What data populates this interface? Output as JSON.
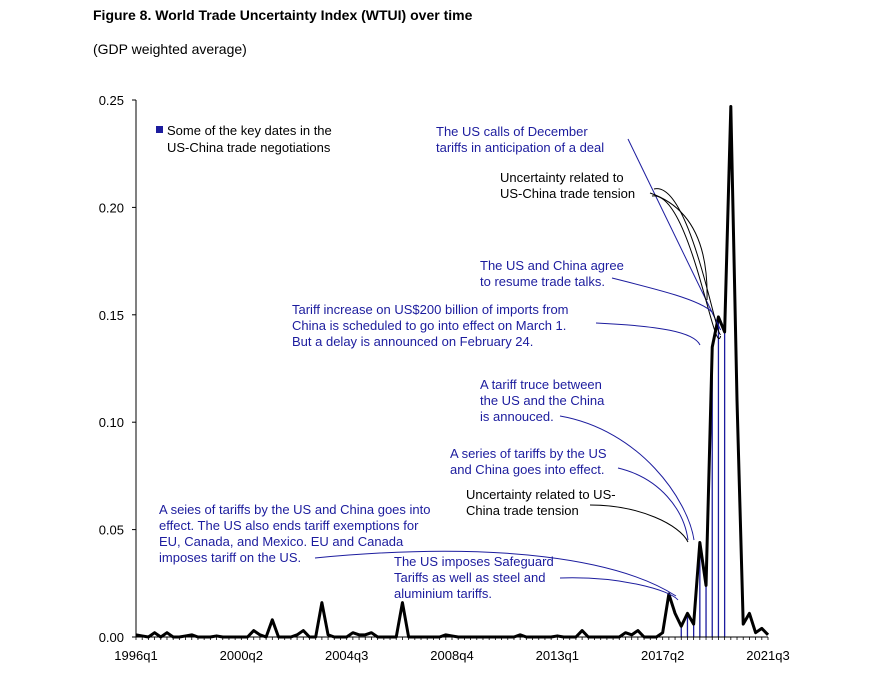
{
  "chart_data": {
    "type": "line",
    "title": "Figure 8. World Trade Uncertainty Index (WTUI) over time",
    "subtitle": "(GDP weighted average)",
    "xlabel": "",
    "ylabel": "",
    "ylim": [
      0,
      0.25
    ],
    "y_ticks": [
      "0.00",
      "0.05",
      "0.10",
      "0.15",
      "0.20",
      "0.25"
    ],
    "x_tick_labels": [
      "1996q1",
      "2000q2",
      "2004q3",
      "2008q4",
      "2013q1",
      "2017q2",
      "2021q3"
    ],
    "grid": false,
    "legend_label": "Some of the key dates in the US-China trade negotiations",
    "legend_lines": [
      "Some of the key dates in the",
      "US-China trade negotiations"
    ],
    "colors": {
      "series": "#000000",
      "key_dates": "#1c1c9e"
    },
    "series": [
      {
        "x": [
          "1996q1",
          "1996q2",
          "1996q3",
          "1996q4",
          "1997q1",
          "1997q2",
          "1997q3",
          "1997q4",
          "1998q1",
          "1998q2",
          "1998q3",
          "1998q4",
          "1999q1",
          "1999q2",
          "1999q3",
          "1999q4",
          "2000q1",
          "2000q2",
          "2000q3",
          "2000q4",
          "2001q1",
          "2001q2",
          "2001q3",
          "2001q4",
          "2002q1",
          "2002q2",
          "2002q3",
          "2002q4",
          "2003q1",
          "2003q2",
          "2003q3",
          "2003q4",
          "2004q1",
          "2004q2",
          "2004q3",
          "2004q4",
          "2005q1",
          "2005q2",
          "2005q3",
          "2005q4",
          "2006q1",
          "2006q2",
          "2006q3",
          "2006q4",
          "2007q1",
          "2007q2",
          "2007q3",
          "2007q4",
          "2008q1",
          "2008q2",
          "2008q3",
          "2008q4",
          "2009q1",
          "2009q2",
          "2009q3",
          "2009q4",
          "2010q1",
          "2010q2",
          "2010q3",
          "2010q4",
          "2011q1",
          "2011q2",
          "2011q3",
          "2011q4",
          "2012q1",
          "2012q2",
          "2012q3",
          "2012q4",
          "2013q1",
          "2013q2",
          "2013q3",
          "2013q4",
          "2014q1",
          "2014q2",
          "2014q3",
          "2014q4",
          "2015q1",
          "2015q2",
          "2015q3",
          "2015q4",
          "2016q1",
          "2016q2",
          "2016q3",
          "2016q4",
          "2017q1",
          "2017q2",
          "2017q3",
          "2017q4",
          "2018q1",
          "2018q2",
          "2018q3",
          "2018q4",
          "2019q1",
          "2019q2",
          "2019q3",
          "2019q4",
          "2020q1",
          "2020q2",
          "2020q3",
          "2020q4",
          "2021q1",
          "2021q2",
          "2021q3"
        ],
        "values": [
          0.001,
          0.0005,
          0.0,
          0.002,
          0.0,
          0.002,
          0.0,
          0.0,
          0.0005,
          0.001,
          0.0,
          0.0,
          0.0,
          0.0005,
          0.0,
          0.0,
          0.0,
          0.0,
          0.0,
          0.003,
          0.001,
          0.0,
          0.008,
          0.0,
          0.0,
          0.0,
          0.001,
          0.003,
          0.0,
          0.0,
          0.016,
          0.001,
          0.0,
          0.0,
          0.0,
          0.002,
          0.001,
          0.001,
          0.002,
          0.0,
          0.0,
          0.0,
          0.0,
          0.016,
          0.0,
          0.0,
          0.0,
          0.0,
          0.0,
          0.0,
          0.001,
          0.0005,
          0.0,
          0.0,
          0.0,
          0.0,
          0.0,
          0.0,
          0.0,
          0.0,
          0.0,
          0.0,
          0.001,
          0.0,
          0.0,
          0.0,
          0.0,
          0.0,
          0.0005,
          0.0,
          0.0,
          0.0,
          0.003,
          0.0,
          0.0,
          0.0,
          0.0,
          0.0,
          0.0,
          0.002,
          0.001,
          0.003,
          0.0,
          0.0,
          0.0,
          0.002,
          0.02,
          0.011,
          0.005,
          0.011,
          0.006,
          0.044,
          0.024,
          0.135,
          0.149,
          0.142,
          0.247,
          0.11,
          0.006,
          0.011,
          0.002,
          0.004,
          0.001
        ]
      }
    ],
    "key_dates_x": [
      "2018q1",
      "2018q2",
      "2018q3",
      "2018q4",
      "2019q1",
      "2019q2",
      "2019q3",
      "2019q4"
    ],
    "annotations": [
      {
        "lines": [
          "The US calls of December",
          "tariffs in anticipation of a deal"
        ],
        "color": "key_dates"
      },
      {
        "lines": [
          "Uncertainty related to",
          "US-China trade tension"
        ],
        "color": "series"
      },
      {
        "lines": [
          "The US and China agree",
          "to resume trade talks."
        ],
        "color": "key_dates"
      },
      {
        "lines": [
          "Tariff increase on US$200 billion of imports from",
          "China is scheduled to go into effect on March 1.",
          "But a delay is announced on February 24."
        ],
        "color": "key_dates"
      },
      {
        "lines": [
          "A tariff truce between",
          "the US and the China",
          "is annouced."
        ],
        "color": "key_dates"
      },
      {
        "lines": [
          "A series of tariffs by the US",
          "and China goes into effect."
        ],
        "color": "key_dates"
      },
      {
        "lines": [
          "Uncertainty related to US-",
          "China trade tension"
        ],
        "color": "series"
      },
      {
        "lines": [
          "A seies of tariffs by the US and China goes into",
          "effect. The US also ends tariff exemptions for",
          "EU, Canada, and Mexico. EU and Canada",
          "imposes tariff on the US."
        ],
        "color": "key_dates"
      },
      {
        "lines": [
          "The US imposes Safeguard",
          "Tariffs as well as steel and",
          "aluminium tariffs."
        ],
        "color": "key_dates"
      }
    ]
  }
}
